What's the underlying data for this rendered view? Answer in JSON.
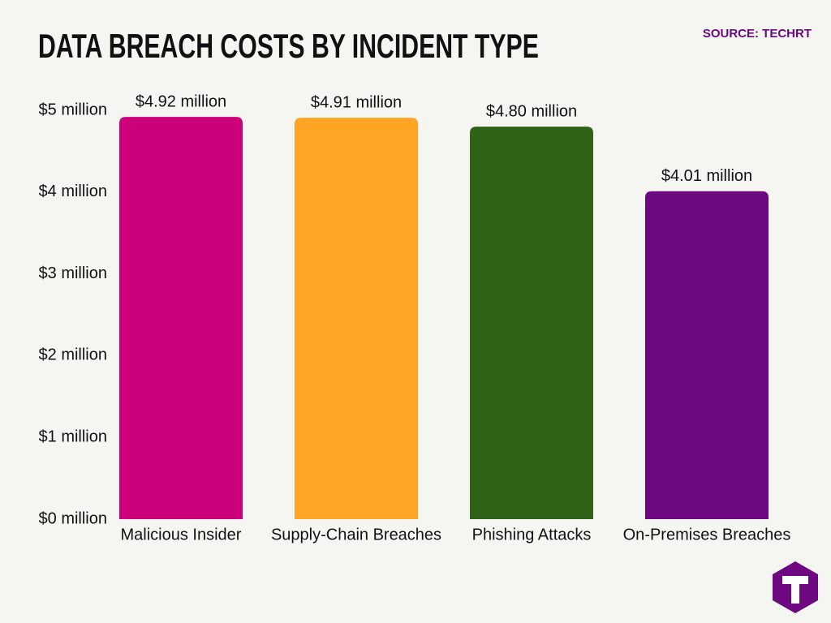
{
  "chart_data": {
    "type": "bar",
    "title": "DATA BREACH COSTS BY INCIDENT TYPE",
    "source": "SOURCE: TECHRT",
    "categories": [
      "Malicious Insider",
      "Supply-Chain Breaches",
      "Phishing Attacks",
      "On-Premises Breaches"
    ],
    "values": [
      4.92,
      4.91,
      4.8,
      4.01
    ],
    "value_labels": [
      "$4.92 million",
      "$4.91 million",
      "$4.80 million",
      "$4.01 million"
    ],
    "colors": [
      "#cc007a",
      "#ffa526",
      "#2e6318",
      "#6e0880"
    ],
    "ylim": [
      0,
      5
    ],
    "yticks": [
      {
        "value": 0,
        "label": "$0 million"
      },
      {
        "value": 1,
        "label": "$1 million"
      },
      {
        "value": 2,
        "label": "$2 million"
      },
      {
        "value": 3,
        "label": "$3 million"
      },
      {
        "value": 4,
        "label": "$4 million"
      },
      {
        "value": 5,
        "label": "$5 million"
      }
    ],
    "grid": false
  }
}
